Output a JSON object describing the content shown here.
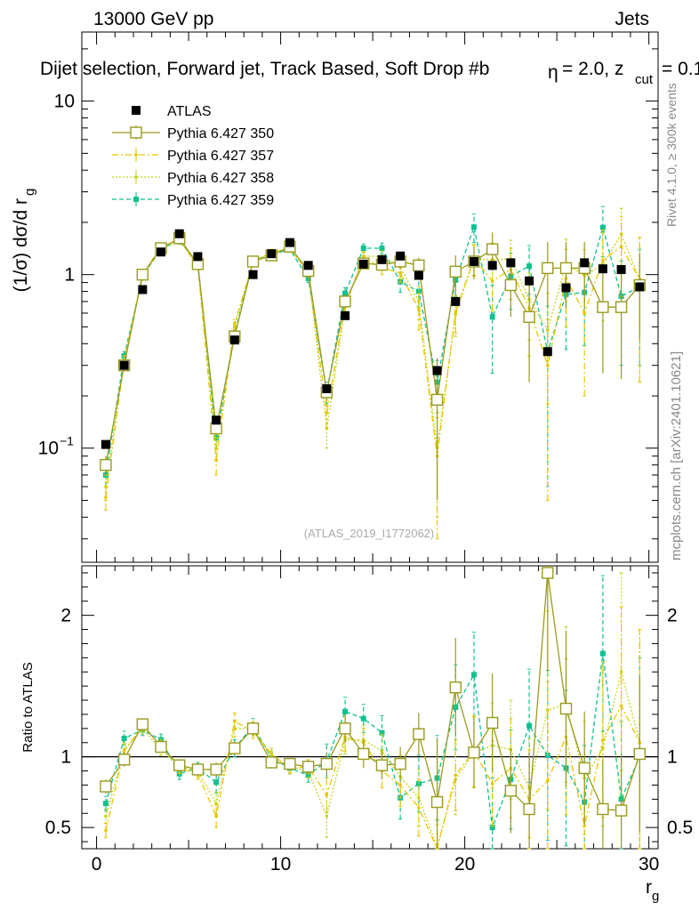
{
  "header": {
    "energy": "13000 GeV pp",
    "process": "Jets",
    "selection_title": "Dijet selection, Forward jet, Track Based, Soft Drop #b",
    "beta_text": "= 2.0, z",
    "zcut_sub": "cut",
    "zcut_val": "= 0.1",
    "eta_glyph": "η"
  },
  "side": {
    "rivet": "Rivet 4.1.0, ≥ 300k events",
    "mcplots": "mcplots.cern.ch [arXiv:2401.10621]"
  },
  "watermark": "(ATLAS_2019_I1772062)",
  "chart_data": {
    "type": "scatter",
    "title": "Dijet selection, Forward jet, Track Based, Soft Drop",
    "xlabel": "r",
    "xlabel_sub": "g",
    "ylabel": "(1/σ) dσ/d r",
    "ylabel_sub": "g",
    "ratio_ylabel": "Ratio to ATLAS",
    "xlim": [
      -0.8,
      30.5
    ],
    "ylim": [
      0.022,
      25
    ],
    "ratio_ylim": [
      0.35,
      2.35
    ],
    "yscale": "log",
    "x_ticks": [
      0,
      10,
      20,
      30
    ],
    "y_ticks": [
      {
        "v": 0.1,
        "label": "10",
        "sup": "−1"
      },
      {
        "v": 1,
        "label": "1"
      },
      {
        "v": 10,
        "label": "10"
      }
    ],
    "ratio_ticks": [
      0.5,
      1,
      2
    ],
    "x": [
      0.5,
      1.5,
      2.5,
      3.5,
      4.5,
      5.5,
      6.5,
      7.5,
      8.5,
      9.5,
      10.5,
      11.5,
      12.5,
      13.5,
      14.5,
      15.5,
      16.5,
      17.5,
      18.5,
      19.5,
      20.5,
      21.5,
      22.5,
      23.5,
      24.5,
      25.5,
      26.5,
      27.5,
      28.5,
      29.5
    ],
    "data": {
      "name": "ATLAS",
      "color": "#000000",
      "values": [
        0.105,
        0.3,
        0.82,
        1.35,
        1.72,
        1.27,
        0.145,
        0.42,
        1.0,
        1.32,
        1.53,
        1.13,
        0.22,
        0.58,
        1.15,
        1.22,
        1.28,
        0.99,
        0.28,
        0.7,
        1.19,
        1.13,
        1.17,
        0.92,
        0.36,
        0.84,
        1.17,
        1.08,
        1.07,
        0.85
      ]
    },
    "series": [
      {
        "name": "Pythia 6.427 350",
        "color": "#9a9a1e",
        "style": "solid",
        "marker": "open-square",
        "values": [
          0.08,
          0.3,
          1.0,
          1.42,
          1.62,
          1.15,
          0.13,
          0.44,
          1.19,
          1.29,
          1.45,
          1.05,
          0.21,
          0.7,
          1.16,
          1.14,
          1.19,
          1.13,
          0.19,
          1.04,
          1.19,
          1.4,
          0.87,
          0.57,
          1.09,
          1.09,
          1.09,
          0.65,
          0.65,
          0.87
        ],
        "errors": [
          0.01,
          0.02,
          0.04,
          0.05,
          0.05,
          0.04,
          0.01,
          0.03,
          0.05,
          0.05,
          0.05,
          0.05,
          0.02,
          0.06,
          0.08,
          0.08,
          0.1,
          0.12,
          0.14,
          0.25,
          0.25,
          0.35,
          0.3,
          0.33,
          0.45,
          0.45,
          0.45,
          0.38,
          0.4,
          0.45
        ],
        "ratio": [
          0.79,
          0.98,
          1.23,
          1.07,
          0.94,
          0.91,
          0.91,
          1.06,
          1.2,
          0.96,
          0.95,
          0.93,
          0.95,
          1.2,
          1.02,
          0.94,
          0.95,
          1.16,
          0.68,
          1.49,
          1.03,
          1.24,
          0.76,
          0.63,
          2.3,
          1.34,
          0.92,
          0.63,
          0.62,
          1.02
        ],
        "ratio_errors": [
          0.05,
          0.05,
          0.04,
          0.04,
          0.04,
          0.04,
          0.05,
          0.05,
          0.05,
          0.04,
          0.04,
          0.05,
          0.08,
          0.1,
          0.1,
          0.1,
          0.12,
          0.15,
          0.45,
          0.35,
          0.25,
          0.35,
          0.3,
          0.4,
          0.7,
          0.55,
          0.4,
          0.35,
          0.4,
          0.55
        ]
      },
      {
        "name": "Pythia 6.427 357",
        "color": "#e6c700",
        "style": "dashdot",
        "marker": "small-dot",
        "values": [
          0.052,
          0.32,
          1.0,
          1.45,
          1.58,
          1.12,
          0.085,
          0.52,
          1.18,
          1.35,
          1.4,
          1.05,
          0.16,
          0.66,
          1.26,
          1.1,
          1.02,
          0.63,
          0.09,
          0.61,
          1.24,
          0.92,
          1.07,
          0.64,
          0.3,
          0.95,
          0.6,
          1.21,
          1.45,
          0.94
        ],
        "errors": [
          0.008,
          0.02,
          0.04,
          0.05,
          0.05,
          0.04,
          0.015,
          0.03,
          0.05,
          0.05,
          0.05,
          0.05,
          0.03,
          0.06,
          0.08,
          0.1,
          0.12,
          0.15,
          0.06,
          0.15,
          0.25,
          0.3,
          0.35,
          0.3,
          0.25,
          0.45,
          0.4,
          0.6,
          0.7,
          0.7
        ],
        "ratio": [
          0.48,
          1.04,
          1.22,
          1.08,
          0.92,
          0.88,
          0.58,
          1.25,
          1.18,
          1.02,
          0.92,
          0.93,
          0.73,
          1.14,
          1.1,
          0.9,
          0.8,
          0.64,
          0.32,
          0.87,
          1.04,
          0.81,
          0.92,
          0.7,
          0.83,
          1.14,
          0.51,
          1.12,
          1.36,
          1.1
        ],
        "ratio_errors": [
          0.05,
          0.05,
          0.04,
          0.04,
          0.04,
          0.04,
          0.08,
          0.06,
          0.05,
          0.04,
          0.04,
          0.05,
          0.12,
          0.1,
          0.1,
          0.12,
          0.15,
          0.2,
          0.2,
          0.25,
          0.25,
          0.3,
          0.35,
          0.35,
          0.7,
          0.55,
          0.4,
          0.55,
          0.7,
          0.8
        ]
      },
      {
        "name": "Pythia 6.427 358",
        "color": "#c5d41b",
        "style": "dotted",
        "marker": "small-dot",
        "values": [
          0.06,
          0.32,
          0.98,
          1.4,
          1.58,
          1.15,
          0.1,
          0.5,
          1.2,
          1.32,
          1.42,
          1.02,
          0.13,
          0.65,
          1.28,
          1.27,
          1.1,
          0.7,
          0.1,
          0.59,
          1.23,
          1.22,
          1.23,
          0.72,
          0.48,
          1.15,
          0.99,
          1.14,
          1.71,
          0.94
        ],
        "errors": [
          0.01,
          0.02,
          0.04,
          0.05,
          0.05,
          0.04,
          0.015,
          0.03,
          0.05,
          0.05,
          0.05,
          0.05,
          0.03,
          0.06,
          0.08,
          0.1,
          0.12,
          0.15,
          0.06,
          0.15,
          0.25,
          0.3,
          0.35,
          0.3,
          0.3,
          0.45,
          0.4,
          0.6,
          0.7,
          0.7
        ],
        "ratio": [
          0.58,
          1.05,
          1.2,
          1.05,
          0.93,
          0.9,
          0.67,
          1.2,
          1.2,
          1.0,
          0.93,
          0.9,
          0.58,
          1.12,
          1.12,
          1.04,
          0.86,
          0.71,
          0.36,
          0.84,
          1.03,
          1.08,
          1.05,
          0.78,
          1.33,
          1.37,
          0.85,
          1.06,
          1.6,
          1.1
        ],
        "ratio_errors": [
          0.05,
          0.05,
          0.04,
          0.04,
          0.04,
          0.04,
          0.08,
          0.06,
          0.05,
          0.04,
          0.04,
          0.05,
          0.15,
          0.1,
          0.1,
          0.12,
          0.15,
          0.2,
          0.2,
          0.25,
          0.25,
          0.3,
          0.35,
          0.35,
          0.7,
          0.55,
          0.4,
          0.55,
          0.7,
          0.8
        ]
      },
      {
        "name": "Pythia 6.427 359",
        "color": "#10c090",
        "style": "dashed",
        "marker": "filled-square",
        "values": [
          0.07,
          0.34,
          0.97,
          1.42,
          1.55,
          1.18,
          0.115,
          0.45,
          1.22,
          1.3,
          1.4,
          0.95,
          0.21,
          0.78,
          1.42,
          1.42,
          0.91,
          0.8,
          0.24,
          0.93,
          1.88,
          0.57,
          0.98,
          1.12,
          0.36,
          0.77,
          0.79,
          1.87,
          0.75,
          0.85
        ],
        "errors": [
          0.01,
          0.02,
          0.04,
          0.05,
          0.05,
          0.04,
          0.015,
          0.03,
          0.05,
          0.05,
          0.05,
          0.05,
          0.03,
          0.06,
          0.08,
          0.1,
          0.12,
          0.15,
          0.08,
          0.18,
          0.35,
          0.3,
          0.35,
          0.35,
          0.3,
          0.4,
          0.4,
          0.6,
          0.45,
          0.55
        ],
        "ratio": [
          0.67,
          1.13,
          1.19,
          1.12,
          0.88,
          0.92,
          0.82,
          1.06,
          1.22,
          0.99,
          0.92,
          0.87,
          0.97,
          1.32,
          1.27,
          1.17,
          0.71,
          0.81,
          0.85,
          1.35,
          1.58,
          0.5,
          0.84,
          1.22,
          1.01,
          0.92,
          0.68,
          1.73,
          0.7,
          1.0
        ],
        "ratio_errors": [
          0.05,
          0.05,
          0.04,
          0.04,
          0.04,
          0.04,
          0.08,
          0.06,
          0.05,
          0.04,
          0.04,
          0.05,
          0.12,
          0.1,
          0.1,
          0.12,
          0.15,
          0.2,
          0.3,
          0.3,
          0.3,
          0.35,
          0.35,
          0.4,
          0.6,
          0.55,
          0.4,
          0.55,
          0.55,
          0.7
        ]
      }
    ]
  }
}
